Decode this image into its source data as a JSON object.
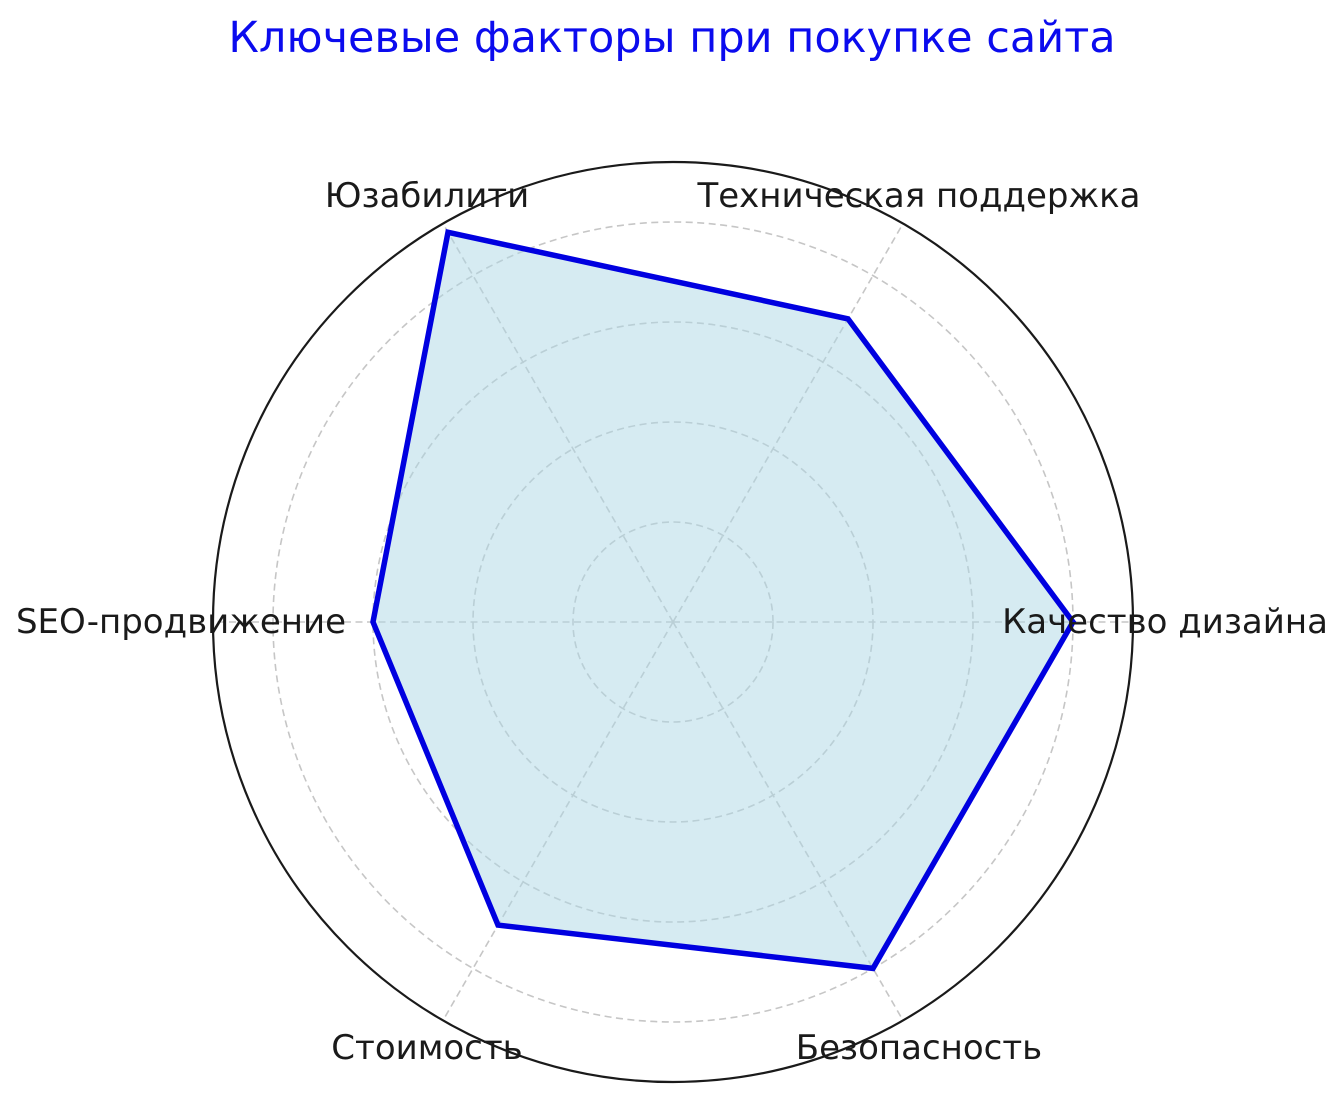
{
  "page": {
    "background": "#ffffff"
  },
  "chart_data": {
    "type": "radar",
    "title": "Ключевые факторы при покупке сайта",
    "categories": [
      "Качество дизайна",
      "Техническая поддержка",
      "Юзабилити",
      "SEO-продвижение",
      "Стоимость",
      "Безопасность"
    ],
    "values": [
      8,
      7,
      9,
      6,
      7,
      8
    ],
    "angles_deg": [
      0,
      60,
      120,
      180,
      240,
      300
    ],
    "r_ticks": [
      2,
      4,
      6,
      8
    ],
    "r_max": 9.2,
    "r_tick_labels_shown": false,
    "grid_style": "dashed",
    "legend": "none",
    "fill_opacity": 0.5,
    "colors": {
      "title": "#0b0bee",
      "line": "#0000e0",
      "fill": "#add8e6",
      "grid": "#c6c6c6",
      "outline": "#1a1a1a",
      "labels": "#1a1a1a",
      "background": "#ffffff"
    }
  }
}
